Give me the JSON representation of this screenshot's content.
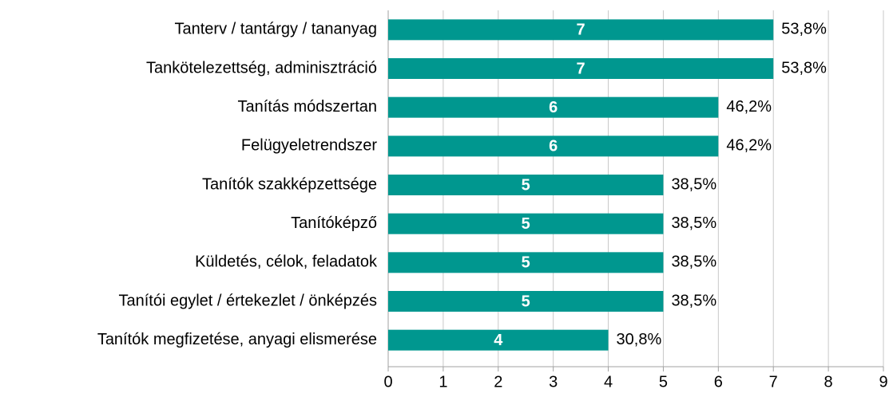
{
  "chart_data": {
    "type": "hbar",
    "categories": [
      "Tanterv / tantárgy / tananyag",
      "Tankötelezettség, adminisztráció",
      "Tanítás módszertan",
      "Felügyeletrendszer",
      "Tanítók szakképzettsége",
      "Tanítóképző",
      "Küldetés, célok, feladatok",
      "Tanítói egylet / értekezlet / önképzés",
      "Tanítók megfizetése, anyagi elismerése"
    ],
    "values": [
      7,
      7,
      6,
      6,
      5,
      5,
      5,
      5,
      4
    ],
    "share_labels": [
      "53,8%",
      "53,8%",
      "46,2%",
      "46,2%",
      "38,5%",
      "38,5%",
      "38,5%",
      "38,5%",
      "30,8%"
    ],
    "color": "#00978f",
    "xlim": [
      0,
      9
    ],
    "xticks": [
      0,
      1,
      2,
      3,
      4,
      5,
      6,
      7,
      8,
      9
    ],
    "grid": true
  }
}
